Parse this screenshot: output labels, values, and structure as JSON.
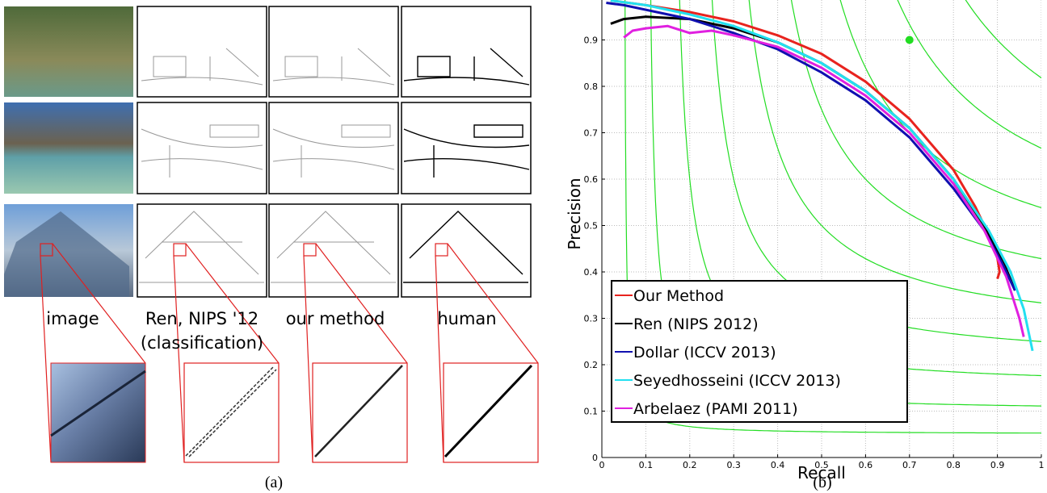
{
  "panel_a": {
    "columns": [
      {
        "lines": [
          "image"
        ]
      },
      {
        "lines": [
          "Ren, NIPS '12",
          "(classification)"
        ]
      },
      {
        "lines": [
          "our method"
        ]
      },
      {
        "lines": [
          "human"
        ]
      }
    ],
    "caption": "(a)"
  },
  "panel_b_caption": "(b)",
  "chart_data": {
    "type": "line",
    "xlabel": "Recall",
    "ylabel": "Precision",
    "xlim": [
      0,
      1
    ],
    "ylim": [
      0,
      1
    ],
    "xticks": [
      0,
      0.1,
      0.2,
      0.3,
      0.4,
      0.5,
      0.6,
      0.7,
      0.8,
      0.9,
      1
    ],
    "yticks": [
      0,
      0.1,
      0.2,
      0.3,
      0.4,
      0.5,
      0.6,
      0.7,
      0.8,
      0.9
    ],
    "grid": true,
    "legend": "lower left",
    "iso_f": {
      "color": "#22dd22",
      "values": [
        0.1,
        0.2,
        0.3,
        0.4,
        0.5,
        0.6,
        0.7,
        0.8,
        0.9
      ]
    },
    "points": [
      {
        "x": 0.7,
        "y": 0.9,
        "color": "#22dd22"
      }
    ],
    "series": [
      {
        "name": "Our Method",
        "color": "#e8231e",
        "x": [
          0.02,
          0.1,
          0.2,
          0.3,
          0.4,
          0.5,
          0.6,
          0.7,
          0.8,
          0.85,
          0.88,
          0.9,
          0.905,
          0.9
        ],
        "values": [
          0.985,
          0.975,
          0.96,
          0.94,
          0.91,
          0.87,
          0.81,
          0.73,
          0.62,
          0.54,
          0.48,
          0.43,
          0.4,
          0.385
        ]
      },
      {
        "name": "Ren (NIPS 2012)",
        "color": "#000000",
        "x": [
          0.02,
          0.05,
          0.1,
          0.2,
          0.3,
          0.4,
          0.5,
          0.6,
          0.7,
          0.8,
          0.87,
          0.91,
          0.94
        ],
        "values": [
          0.935,
          0.945,
          0.95,
          0.945,
          0.925,
          0.895,
          0.85,
          0.79,
          0.71,
          0.6,
          0.5,
          0.43,
          0.36
        ]
      },
      {
        "name": "Dollar (ICCV 2013)",
        "color": "#1010b0",
        "x": [
          0.01,
          0.05,
          0.1,
          0.2,
          0.3,
          0.4,
          0.5,
          0.6,
          0.7,
          0.8,
          0.87,
          0.91,
          0.94
        ],
        "values": [
          0.98,
          0.975,
          0.965,
          0.945,
          0.915,
          0.88,
          0.83,
          0.77,
          0.69,
          0.58,
          0.49,
          0.42,
          0.36
        ]
      },
      {
        "name": "Seyedhosseini (ICCV 2013)",
        "color": "#22e0f0",
        "x": [
          0.02,
          0.1,
          0.2,
          0.3,
          0.4,
          0.5,
          0.6,
          0.7,
          0.8,
          0.88,
          0.93,
          0.96,
          0.98
        ],
        "values": [
          0.985,
          0.975,
          0.955,
          0.93,
          0.895,
          0.85,
          0.79,
          0.71,
          0.6,
          0.49,
          0.4,
          0.32,
          0.23
        ]
      },
      {
        "name": "Arbelaez (PAMI 2011)",
        "color": "#e020e0",
        "x": [
          0.05,
          0.07,
          0.1,
          0.15,
          0.2,
          0.25,
          0.3,
          0.4,
          0.5,
          0.6,
          0.7,
          0.8,
          0.87,
          0.92,
          0.95,
          0.96
        ],
        "values": [
          0.905,
          0.92,
          0.925,
          0.93,
          0.915,
          0.92,
          0.91,
          0.885,
          0.84,
          0.78,
          0.7,
          0.59,
          0.49,
          0.39,
          0.3,
          0.26
        ]
      }
    ]
  }
}
